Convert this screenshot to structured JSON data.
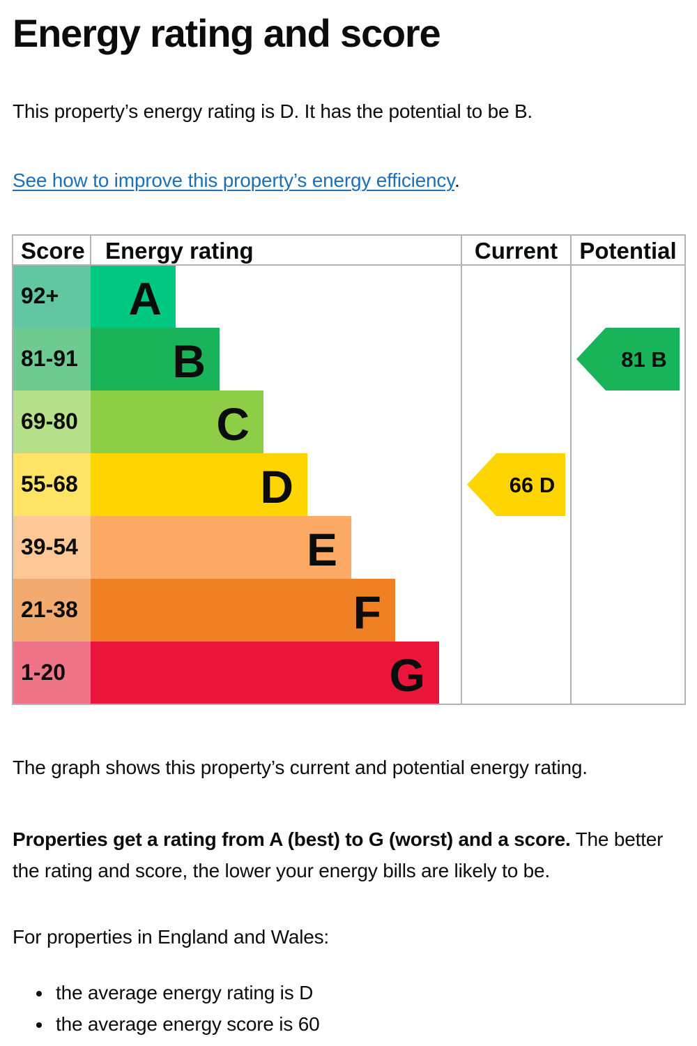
{
  "page": {
    "title": "Energy rating and score",
    "intro": "This property’s energy rating is D. It has the potential to be B.",
    "improve_link": "See how to improve this property’s energy efficiency",
    "improve_suffix": ".",
    "graph_description": "The graph shows this property’s current and potential energy rating.",
    "rating_info_bold": "Properties get a rating from A (best) to G (worst) and a score.",
    "rating_info_rest": " The better the rating and score, the lower your energy bills are likely to be.",
    "region_heading": "For properties in England and Wales:",
    "bullets": [
      "the average energy rating is D",
      "the average energy score is 60"
    ]
  },
  "chart_data": {
    "type": "bar",
    "column_headers": {
      "score": "Score",
      "rating": "Energy rating",
      "current": "Current",
      "potential": "Potential"
    },
    "bands": [
      {
        "letter": "A",
        "score_range": "92+",
        "color": "#00c781",
        "score_bg": "#62c6a2"
      },
      {
        "letter": "B",
        "score_range": "81-91",
        "color": "#19b459",
        "score_bg": "#6fca91"
      },
      {
        "letter": "C",
        "score_range": "69-80",
        "color": "#8dce46",
        "score_bg": "#b6df8a"
      },
      {
        "letter": "D",
        "score_range": "55-68",
        "color": "#ffd500",
        "score_bg": "#ffe364"
      },
      {
        "letter": "E",
        "score_range": "39-54",
        "color": "#fcaa65",
        "score_bg": "#fdc896"
      },
      {
        "letter": "F",
        "score_range": "21-38",
        "color": "#ef8023",
        "score_bg": "#f3aa6e"
      },
      {
        "letter": "G",
        "score_range": "1-20",
        "color": "#e9153b",
        "score_bg": "#f07487"
      }
    ],
    "current": {
      "score": 66,
      "band": "D",
      "label": "66  D",
      "color": "#ffd500"
    },
    "potential": {
      "score": 81,
      "band": "B",
      "label": "81  B",
      "color": "#19b459"
    }
  }
}
